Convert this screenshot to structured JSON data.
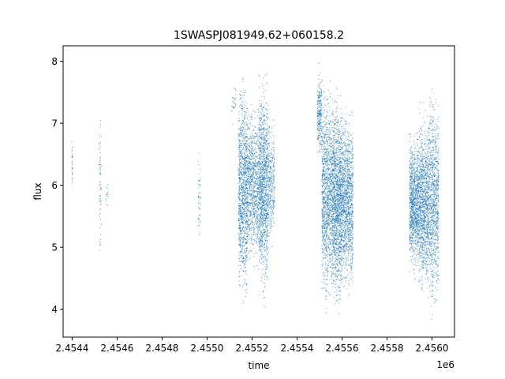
{
  "chart_data": {
    "type": "scatter",
    "title": "1SWASPJ081949.62+060158.2",
    "xlabel": "time",
    "ylabel": "flux",
    "x_offset_label": "1e6",
    "xlim": [
      2.45436,
      2.4561
    ],
    "ylim": [
      3.55,
      8.25
    ],
    "x_ticks": [
      2.4544,
      2.4546,
      2.4548,
      2.455,
      2.4552,
      2.4554,
      2.4556,
      2.4558,
      2.456
    ],
    "x_tick_labels": [
      "2.4544",
      "2.4546",
      "2.4548",
      "2.4550",
      "2.4552",
      "2.4554",
      "2.4556",
      "2.4558",
      "2.4560"
    ],
    "y_ticks": [
      4,
      5,
      6,
      7,
      8
    ],
    "y_tick_labels": [
      "4",
      "5",
      "6",
      "7",
      "8"
    ],
    "grid": false,
    "marker_color": "#1f77b4",
    "series": [
      {
        "clusters": [
          {
            "x": [
              2.4544,
              2.4544
            ],
            "y": [
              5.7,
              6.9
            ],
            "n": 25
          },
          {
            "x": [
              2.45452,
              2.45453
            ],
            "y": [
              4.6,
              7.4
            ],
            "n": 70
          },
          {
            "x": [
              2.45455,
              2.45456
            ],
            "y": [
              5.6,
              6.1
            ],
            "n": 15
          },
          {
            "x": [
              2.45496,
              2.45497
            ],
            "y": [
              4.8,
              6.7
            ],
            "n": 50
          },
          {
            "x": [
              2.45511,
              2.45513
            ],
            "y": [
              6.9,
              7.8
            ],
            "n": 30
          },
          {
            "x": [
              2.45514,
              2.45518
            ],
            "y": [
              3.8,
              8.0
            ],
            "n": 1100
          },
          {
            "x": [
              2.45518,
              2.45523
            ],
            "y": [
              4.5,
              7.5
            ],
            "n": 850
          },
          {
            "x": [
              2.45523,
              2.45527
            ],
            "y": [
              3.9,
              8.05
            ],
            "n": 1200
          },
          {
            "x": [
              2.45527,
              2.4553
            ],
            "y": [
              4.8,
              7.3
            ],
            "n": 350
          },
          {
            "x": [
              2.45549,
              2.45551
            ],
            "y": [
              6.3,
              8.0
            ],
            "n": 260
          },
          {
            "x": [
              2.45551,
              2.45556
            ],
            "y": [
              3.8,
              7.9
            ],
            "n": 1300
          },
          {
            "x": [
              2.45556,
              2.4556
            ],
            "y": [
              3.7,
              7.8
            ],
            "n": 1350
          },
          {
            "x": [
              2.4556,
              2.45565
            ],
            "y": [
              4.0,
              7.5
            ],
            "n": 1200
          },
          {
            "x": [
              2.4559,
              2.45594
            ],
            "y": [
              4.4,
              7.0
            ],
            "n": 1000
          },
          {
            "x": [
              2.45594,
              2.45598
            ],
            "y": [
              4.0,
              7.4
            ],
            "n": 1000
          },
          {
            "x": [
              2.45598,
              2.45603
            ],
            "y": [
              3.7,
              7.8
            ],
            "n": 1100
          }
        ]
      }
    ]
  }
}
